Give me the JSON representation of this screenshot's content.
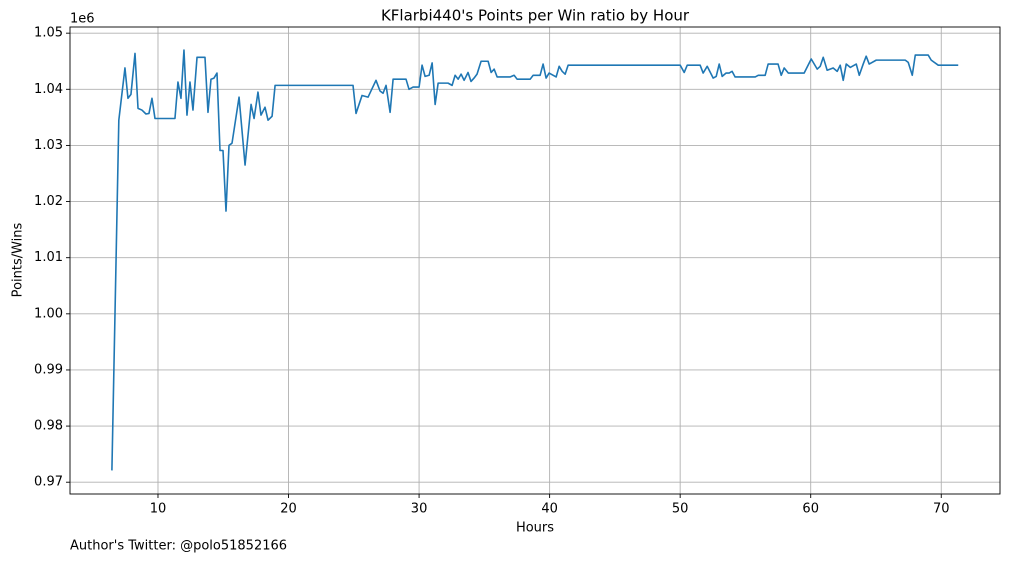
{
  "chart_data": {
    "type": "line",
    "title": "KFlarbi440's Points per Win ratio by Hour",
    "x_label": "Hours",
    "y_label": "Points/Wins",
    "y_offset_label": "1e6",
    "footer": "Author's Twitter: @polo51852166",
    "color": "#1f77b4",
    "grid": true,
    "xlim": [
      3.26,
      74.5
    ],
    "xticks": [
      10,
      20,
      30,
      40,
      50,
      60,
      70
    ],
    "ylim": [
      0.9679,
      1.0511
    ],
    "yticks": [
      0.97,
      0.98,
      0.99,
      {
        "value": 1,
        "label": "1.00"
      },
      1.01,
      1.02,
      1.03,
      1.04,
      1.05
    ],
    "x": [
      6.47,
      7.0,
      7.47,
      7.7,
      7.93,
      8.24,
      8.47,
      8.77,
      9.08,
      9.31,
      9.54,
      9.77,
      11.3,
      11.53,
      11.76,
      11.99,
      12.22,
      12.45,
      12.68,
      12.99,
      13.6,
      13.83,
      14.06,
      14.29,
      14.52,
      14.75,
      14.98,
      15.21,
      15.44,
      15.67,
      16.21,
      16.67,
      17.13,
      17.36,
      17.66,
      17.89,
      18.2,
      18.43,
      18.74,
      18.97,
      24.94,
      25.17,
      25.63,
      26.09,
      26.7,
      27.01,
      27.24,
      27.47,
      27.78,
      28.01,
      29.0,
      29.23,
      29.54,
      30.0,
      30.23,
      30.46,
      30.77,
      31.0,
      31.23,
      31.46,
      32.22,
      32.53,
      32.76,
      32.99,
      33.22,
      33.45,
      33.75,
      33.98,
      34.21,
      34.44,
      34.75,
      35.29,
      35.52,
      35.75,
      35.98,
      36.97,
      37.28,
      37.51,
      38.51,
      38.74,
      39.27,
      39.5,
      39.73,
      39.96,
      40.5,
      40.73,
      40.96,
      41.19,
      41.42,
      50.0,
      50.31,
      50.54,
      51.53,
      51.76,
      52.07,
      52.53,
      52.76,
      52.99,
      53.22,
      53.52,
      53.75,
      53.98,
      54.21,
      55.75,
      55.98,
      56.51,
      56.74,
      57.5,
      57.74,
      57.97,
      58.28,
      59.5,
      60.04,
      60.5,
      60.73,
      60.96,
      61.26,
      61.72,
      62.03,
      62.26,
      62.49,
      62.72,
      63.03,
      63.49,
      63.72,
      64.02,
      64.25,
      64.48,
      65.02,
      67.24,
      67.47,
      67.78,
      68.01,
      69.0,
      69.23,
      69.77,
      71.3
    ],
    "values": [
      0.9721,
      1.0345,
      1.0438,
      1.0384,
      1.0391,
      1.0464,
      1.0366,
      1.0363,
      1.0356,
      1.0357,
      1.0384,
      1.0348,
      1.0348,
      1.0413,
      1.0384,
      1.047,
      1.0354,
      1.0413,
      1.0363,
      1.0457,
      1.0457,
      1.0359,
      1.0418,
      1.042,
      1.0429,
      1.0291,
      1.0291,
      1.0183,
      1.03,
      1.0304,
      1.0386,
      1.0265,
      1.0373,
      1.0348,
      1.0395,
      1.0354,
      1.0368,
      1.0345,
      1.0352,
      1.0407,
      1.0407,
      1.0357,
      1.0389,
      1.0386,
      1.0416,
      1.0397,
      1.0393,
      1.0407,
      1.0359,
      1.0418,
      1.0418,
      1.04,
      1.0404,
      1.0404,
      1.0443,
      1.0423,
      1.0425,
      1.0447,
      1.0373,
      1.0411,
      1.0411,
      1.0407,
      1.0425,
      1.0418,
      1.0427,
      1.0416,
      1.043,
      1.0414,
      1.042,
      1.0427,
      1.045,
      1.045,
      1.043,
      1.0436,
      1.0422,
      1.0422,
      1.0425,
      1.0418,
      1.0418,
      1.0425,
      1.0425,
      1.0445,
      1.042,
      1.0429,
      1.0422,
      1.0441,
      1.0432,
      1.0427,
      1.0443,
      1.0443,
      1.043,
      1.0443,
      1.0443,
      1.0429,
      1.0441,
      1.042,
      1.0423,
      1.0445,
      1.0423,
      1.0429,
      1.0429,
      1.0432,
      1.0422,
      1.0422,
      1.0425,
      1.0425,
      1.0445,
      1.0445,
      1.0425,
      1.0438,
      1.0429,
      1.0429,
      1.0454,
      1.0436,
      1.0441,
      1.0457,
      1.0434,
      1.0438,
      1.0432,
      1.0443,
      1.0416,
      1.0445,
      1.0439,
      1.0445,
      1.0425,
      1.0445,
      1.0459,
      1.0445,
      1.0452,
      1.0452,
      1.0448,
      1.0425,
      1.0461,
      1.0461,
      1.0452,
      1.0443,
      1.0443
    ]
  }
}
